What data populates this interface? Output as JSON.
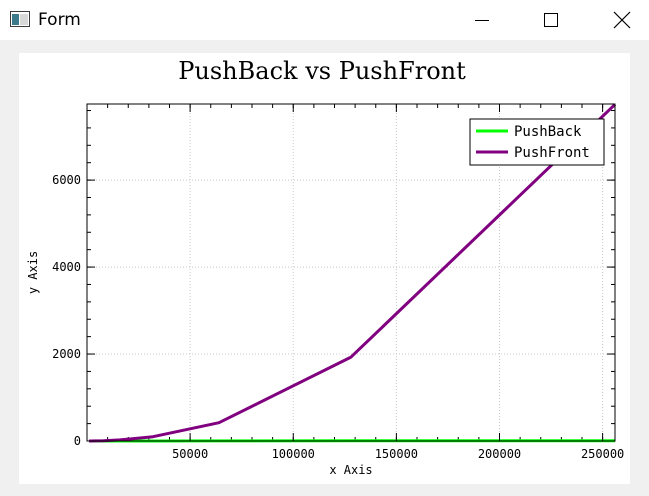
{
  "window": {
    "title": "Form",
    "icon": "form-window-icon",
    "controls": [
      "minimize-icon",
      "maximize-icon",
      "close-icon"
    ]
  },
  "chart_data": {
    "type": "line",
    "title": "PushBack vs PushFront",
    "xlabel": "x Axis",
    "ylabel": "y Axis",
    "xlim": [
      0,
      256000
    ],
    "ylim": [
      0,
      7750
    ],
    "xticks": [
      50000,
      100000,
      150000,
      200000,
      250000
    ],
    "yticks": [
      0,
      2000,
      4000,
      6000
    ],
    "grid": true,
    "legend_position": "top-right",
    "series": [
      {
        "name": "PushBack",
        "color": "#00ff00",
        "x": [
          1000,
          2000,
          4000,
          8000,
          16000,
          32000,
          64000,
          128000,
          256000
        ],
        "y": [
          0,
          0,
          0,
          0,
          0,
          1,
          2,
          4,
          8
        ]
      },
      {
        "name": "PushFront",
        "color": "#800080",
        "x": [
          1000,
          2000,
          4000,
          8000,
          16000,
          32000,
          64000,
          128000,
          256000
        ],
        "y": [
          0,
          1,
          2,
          6,
          25,
          100,
          420,
          1930,
          7740
        ]
      }
    ]
  }
}
